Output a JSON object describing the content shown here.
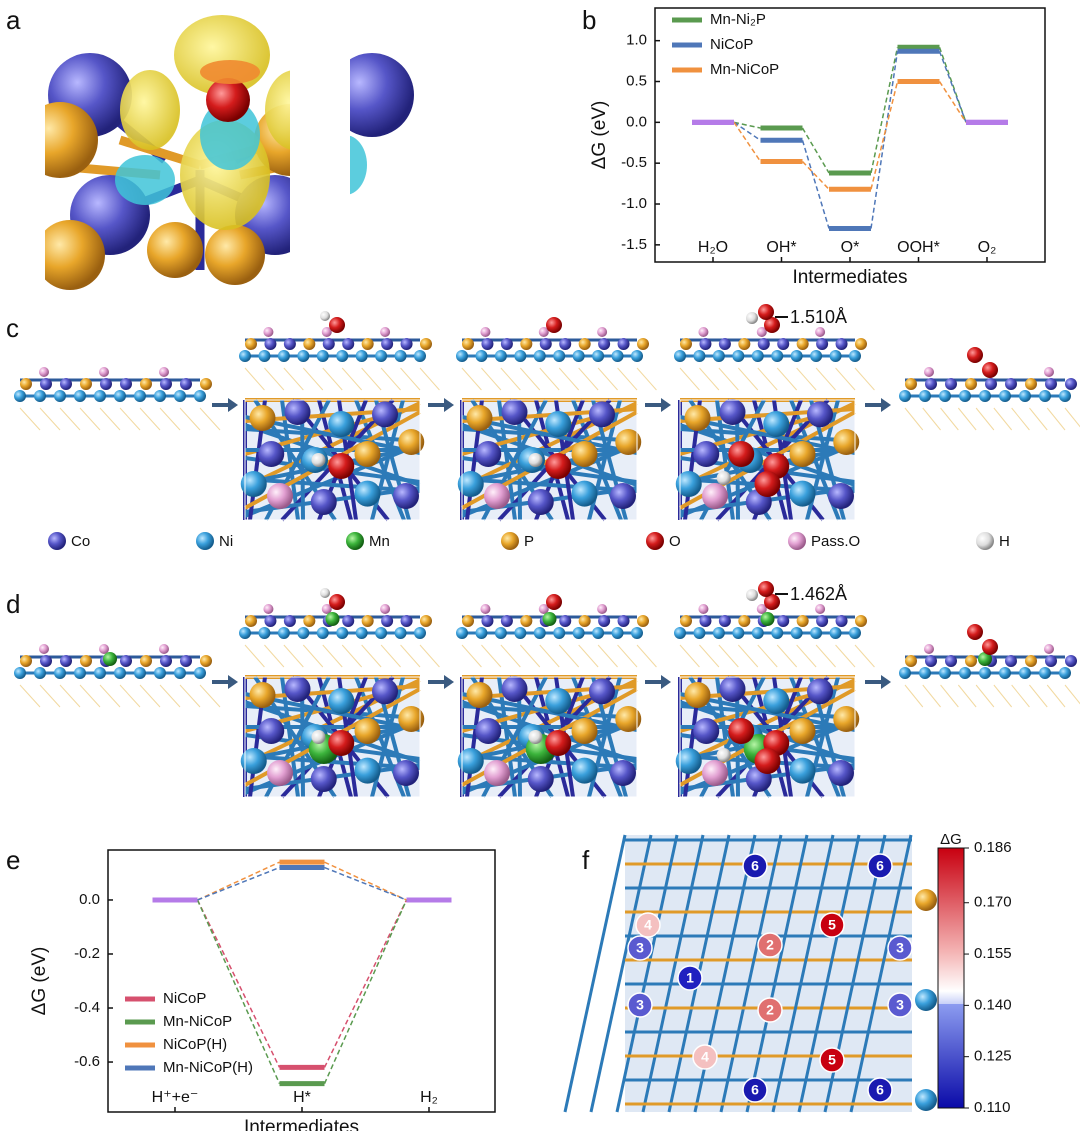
{
  "panel_labels": [
    "a",
    "b",
    "c",
    "d",
    "e",
    "f"
  ],
  "chart_data": [
    {
      "type": "line",
      "y_label": "ΔG (eV)",
      "x_label": "Intermediates",
      "categories": [
        "H₂O",
        "OH*",
        "O*",
        "OOH*",
        "O₂"
      ],
      "series": [
        {
          "name": "Mn-Ni₂P",
          "color": "#5a9a4f",
          "values": [
            0,
            -0.07,
            -0.62,
            0.92,
            0
          ]
        },
        {
          "name": "NiCoP",
          "color": "#4f77b8",
          "values": [
            0,
            -0.22,
            -1.3,
            0.87,
            0
          ]
        },
        {
          "name": "Mn-NiCoP",
          "color": "#f0913f",
          "values": [
            0,
            -0.48,
            -0.82,
            0.5,
            0
          ]
        }
      ],
      "common_color": "#b57be8",
      "ylim": [
        -1.71,
        1.4
      ],
      "yticks": [
        {
          "value": 1,
          "label": "1.0"
        },
        0.5,
        {
          "value": 0,
          "label": "0.0"
        },
        -0.5,
        {
          "value": -1,
          "label": "-1.0"
        },
        -1.5
      ],
      "legend": "upper left"
    },
    {
      "type": "line",
      "y_label": "ΔG (eV)",
      "x_label": "Intermediates",
      "categories": [
        "H⁺+e⁻",
        "H*",
        "H₂"
      ],
      "series": [
        {
          "name": "NiCoP",
          "color": "#d6506e",
          "values": [
            0,
            -0.62,
            0
          ]
        },
        {
          "name": "Mn-NiCoP",
          "color": "#5a9a4f",
          "values": [
            0,
            -0.68,
            0
          ]
        },
        {
          "name": "NiCoP(H)",
          "color": "#f0913f",
          "values": [
            0,
            0.14,
            0
          ]
        },
        {
          "name": "Mn-NiCoP(H)",
          "color": "#4f77b8",
          "values": [
            0,
            0.12,
            0
          ]
        }
      ],
      "common_color": "#b57be8",
      "ylim": [
        -0.785,
        0.185
      ],
      "yticks": [
        {
          "value": 0,
          "label": "0.0"
        },
        -0.2,
        -0.4,
        -0.6
      ],
      "legend": "lower left"
    }
  ],
  "atom_legend": [
    "Co",
    "Ni",
    "Mn",
    "P",
    "O",
    "Pass.O",
    "H"
  ],
  "annotations": {
    "c": "1.510Å",
    "d": "1.462Å"
  },
  "colorbar": {
    "title": "ΔG",
    "lim": [
      0.11,
      0.186
    ],
    "ticks": [
      0.186,
      {
        "value": 0.17,
        "label": "0.170"
      },
      0.155,
      {
        "value": 0.14,
        "label": "0.140"
      },
      0.125,
      {
        "value": 0.11,
        "label": "0.110"
      }
    ]
  },
  "sites": [
    "6",
    "6",
    "4",
    "5",
    "3",
    "2",
    "3",
    "1",
    "3",
    "2",
    "3",
    "4",
    "5",
    "6",
    "6"
  ]
}
